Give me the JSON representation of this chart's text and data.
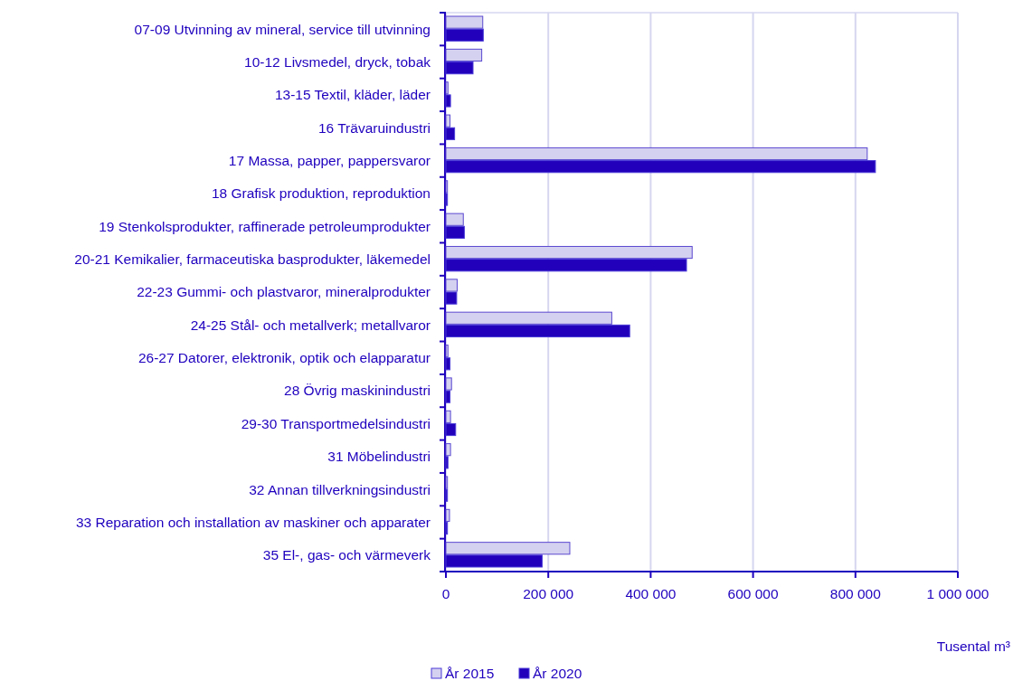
{
  "chart_data": {
    "type": "bar",
    "orientation": "horizontal",
    "xlabel": "Tusental m³",
    "categories": [
      "07-09 Utvinning av mineral, service till utvinning",
      "10-12 Livsmedel, dryck, tobak",
      "13-15 Textil, kläder, läder",
      "16 Trävaruindustri",
      "17 Massa, papper, pappersvaror",
      "18 Grafisk produktion, reproduktion",
      "19 Stenkolsprodukter, raffinerade petroleumprodukter",
      "20-21 Kemikalier, farmaceutiska basprodukter, läkemedel",
      "22-23 Gummi- och plastvaror, mineralprodukter",
      "24-25 Stål- och metallverk; metallvaror",
      "26-27 Datorer, elektronik, optik och elapparatur",
      "28 Övrig maskinindustri",
      "29-30 Transportmedelsindustri",
      "31 Möbelindustri",
      "32 Annan tillverkningsindustri",
      "33 Reparation och installation av maskiner och apparater",
      "35 El-, gas- och värmeverk"
    ],
    "series": [
      {
        "name": "År 2015",
        "color": "#d4d1f0",
        "values": [
          72000,
          70000,
          4000,
          8000,
          823000,
          3000,
          34000,
          481000,
          22000,
          324000,
          4000,
          11000,
          9000,
          9000,
          3000,
          7000,
          242000
        ]
      },
      {
        "name": "År 2020",
        "color": "#2200bb",
        "values": [
          73000,
          53000,
          9000,
          17000,
          839000,
          3000,
          36000,
          470000,
          21000,
          359000,
          8000,
          8000,
          19000,
          4000,
          3000,
          3000,
          188000
        ]
      }
    ],
    "xlim": [
      0,
      1000000
    ],
    "xticks": [
      0,
      {
        "value": 200000,
        "label": "200 000"
      },
      {
        "value": 400000,
        "label": "400 000"
      },
      {
        "value": 600000,
        "label": "600 000"
      },
      {
        "value": 800000,
        "label": "800 000"
      },
      {
        "value": 1000000,
        "label": "1 000 000"
      }
    ],
    "grid": "x",
    "legend": "bottom left"
  }
}
